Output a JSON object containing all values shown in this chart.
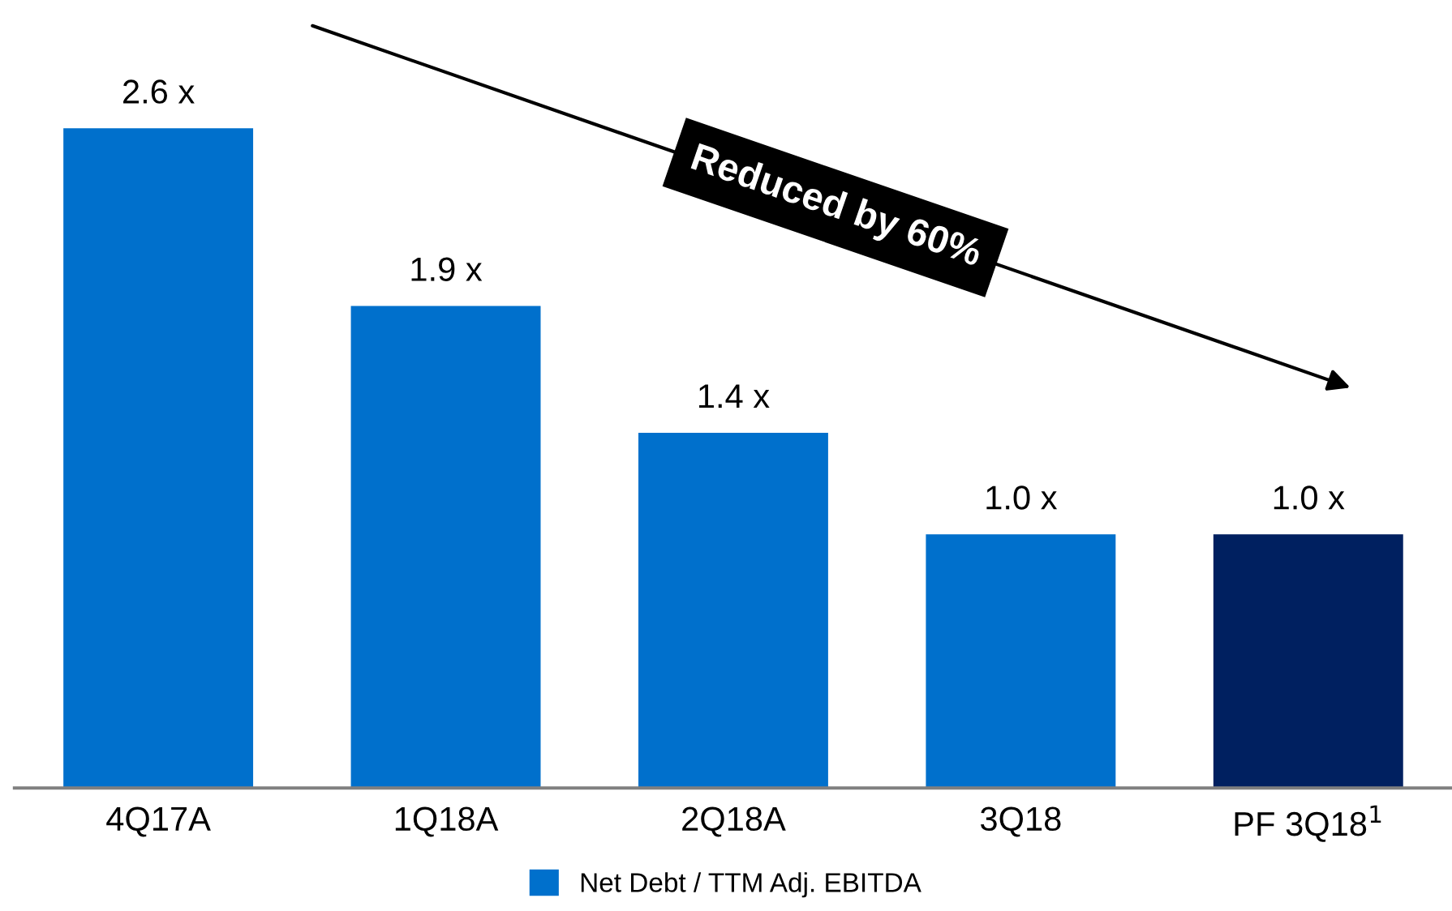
{
  "chart_data": {
    "type": "bar",
    "categories": [
      "4Q17A",
      "1Q18A",
      "2Q18A",
      "3Q18",
      "PF 3Q18$^{1}$"
    ],
    "series": [
      {
        "name": "Net Debt / TTM Adj. EBITDA",
        "color": "#0070cc",
        "colors": [
          "#0070cc",
          "#0070cc",
          "#0070cc",
          "#0070cc",
          "#002060"
        ],
        "values": [
          2.6,
          1.9,
          1.4,
          1.0,
          1.0
        ],
        "value_labels": [
          "2.6 x",
          "1.9 x",
          "1.4 x",
          "1.0 x",
          "1.0 x"
        ]
      }
    ],
    "annotations": [
      "Reduced by 60%"
    ],
    "legend": "bottom",
    "grid": false
  }
}
